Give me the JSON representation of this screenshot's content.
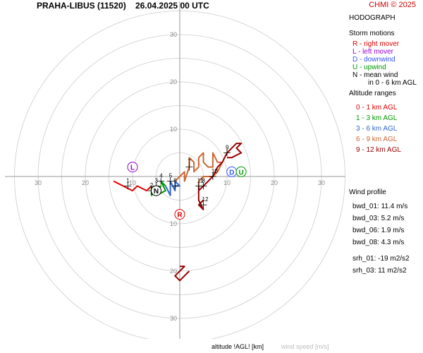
{
  "header": {
    "station": "PRAHA-LIBUS (11520)",
    "datetime": "26.04.2025 00 UTC",
    "credit": "CHMI © 2025"
  },
  "panel": {
    "title": "HODOGRAPH",
    "storm_motions": {
      "heading": "Storm motions",
      "items": [
        {
          "text": "R - right mover",
          "color": "#e00000"
        },
        {
          "text": "L - left mover",
          "color": "#9900cc"
        },
        {
          "text": "D - downwind",
          "color": "#3355ff"
        },
        {
          "text": "U - upwind",
          "color": "#009900"
        },
        {
          "text": "N - mean wind",
          "color": "#000000"
        },
        {
          "text": "in 0 - 6 km AGL",
          "color": "#000000"
        }
      ]
    },
    "altitude_ranges": {
      "heading": "Altitude ranges",
      "items": [
        {
          "text": "0 - 1 km AGL",
          "color": "#e00000"
        },
        {
          "text": "1 - 3 km AGL",
          "color": "#009900"
        },
        {
          "text": "3 - 6 km AGL",
          "color": "#3366cc"
        },
        {
          "text": "6 - 9 km AGL",
          "color": "#cc6633"
        },
        {
          "text": "9 - 12 km AGL",
          "color": "#990000"
        }
      ]
    },
    "wind_profile": {
      "heading": "Wind profile",
      "items": [
        "bwd_01: 11.4 m/s",
        "bwd_03: 5.2 m/s",
        "bwd_06: 1.9 m/s",
        "bwd_08: 4.3 m/s",
        "srh_01: -19 m2/s2",
        "srh_03: 11 m2/s2"
      ]
    }
  },
  "footer": {
    "altitude_label": "altitude !AGL! [km]",
    "speed_label": "wind speed [m/s]"
  },
  "chart_data": {
    "type": "line",
    "title": "HODOGRAPH",
    "axis_ticks": [
      10,
      20,
      30
    ],
    "rings": [
      5,
      10,
      15,
      20,
      25,
      30,
      35
    ],
    "range": [
      -37,
      37
    ],
    "series": [
      {
        "color": "#e00000",
        "points": [
          [
            -14,
            -1
          ],
          [
            -12,
            -2
          ],
          [
            -10,
            -3
          ],
          [
            -9,
            -2
          ],
          [
            -7,
            -3
          ],
          [
            -6,
            -2
          ]
        ]
      },
      {
        "color": "#009900",
        "points": [
          [
            -6,
            -2
          ],
          [
            -6,
            -4
          ],
          [
            -5,
            -3
          ],
          [
            -4,
            -2
          ],
          [
            -5,
            -4
          ],
          [
            -3,
            -3
          ],
          [
            -4,
            -1
          ],
          [
            -3,
            -2
          ]
        ]
      },
      {
        "color": "#3366cc",
        "points": [
          [
            -3,
            -2
          ],
          [
            -2,
            -4
          ],
          [
            -2,
            -1
          ],
          [
            -1,
            -3
          ],
          [
            -1,
            -1
          ],
          [
            0,
            -2
          ],
          [
            -1,
            -2
          ]
        ]
      },
      {
        "color": "#cc6633",
        "points": [
          [
            -1,
            -1
          ],
          [
            0,
            0
          ],
          [
            1,
            1
          ],
          [
            1,
            -1
          ],
          [
            2,
            2
          ],
          [
            2,
            4
          ],
          [
            3,
            3
          ],
          [
            3,
            1
          ],
          [
            4,
            2
          ],
          [
            4,
            4
          ],
          [
            5,
            5
          ],
          [
            5,
            3
          ],
          [
            6,
            2
          ],
          [
            7,
            2
          ],
          [
            7,
            5
          ],
          [
            8,
            3
          ],
          [
            9,
            3
          ],
          [
            8,
            1
          ],
          [
            7,
            0
          ],
          [
            5,
            0
          ],
          [
            4,
            -1
          ],
          [
            4,
            -2
          ]
        ]
      },
      {
        "color": "#990000",
        "points": [
          [
            4,
            -2
          ],
          [
            4,
            -3
          ],
          [
            5,
            -2
          ],
          [
            6,
            -1
          ],
          [
            7,
            0
          ],
          [
            8,
            2
          ],
          [
            9,
            3
          ],
          [
            10,
            5
          ],
          [
            11,
            6
          ],
          [
            12,
            7
          ],
          [
            13,
            7
          ],
          [
            12,
            6
          ],
          [
            13,
            5
          ],
          [
            11,
            4
          ],
          [
            10,
            4
          ]
        ]
      },
      {
        "color": "#990000",
        "points": [
          [
            4,
            -3
          ],
          [
            4,
            -5
          ],
          [
            5,
            -7
          ],
          [
            4,
            -6
          ],
          [
            5,
            -5
          ]
        ]
      },
      {
        "color": "#990000",
        "points": [
          [
            2,
            -20
          ],
          [
            1,
            -21
          ],
          [
            0,
            -22
          ],
          [
            -1,
            -21
          ],
          [
            0,
            -20
          ],
          [
            1,
            -19
          ],
          [
            0,
            -19
          ]
        ]
      }
    ],
    "altitude_marks": [
      {
        "label": "1",
        "x": -11,
        "y": -2
      },
      {
        "label": "2",
        "x": -6,
        "y": -3
      },
      {
        "label": "3",
        "x": -5,
        "y": -2
      },
      {
        "label": "4",
        "x": -4,
        "y": -1
      },
      {
        "label": "5",
        "x": -2,
        "y": -1
      },
      {
        "label": "6",
        "x": -1,
        "y": -2
      },
      {
        "label": "7",
        "x": 2,
        "y": 2
      },
      {
        "label": "8",
        "x": 5,
        "y": -2
      },
      {
        "label": "9",
        "x": 10,
        "y": 5
      },
      {
        "label": "10",
        "x": 7,
        "y": 0
      },
      {
        "label": "11",
        "x": 4,
        "y": -2
      },
      {
        "label": "12",
        "x": 5,
        "y": -6
      }
    ],
    "storm_markers": [
      {
        "label": "R",
        "x": 0,
        "y": -8,
        "color": "#e00000"
      },
      {
        "label": "L",
        "x": -10,
        "y": 2,
        "color": "#9900cc"
      },
      {
        "label": "D",
        "x": 11,
        "y": 1,
        "color": "#3355ff"
      },
      {
        "label": "U",
        "x": 13,
        "y": 1,
        "color": "#009900"
      },
      {
        "label": "N",
        "x": -5,
        "y": -3,
        "color": "#000000"
      }
    ]
  }
}
